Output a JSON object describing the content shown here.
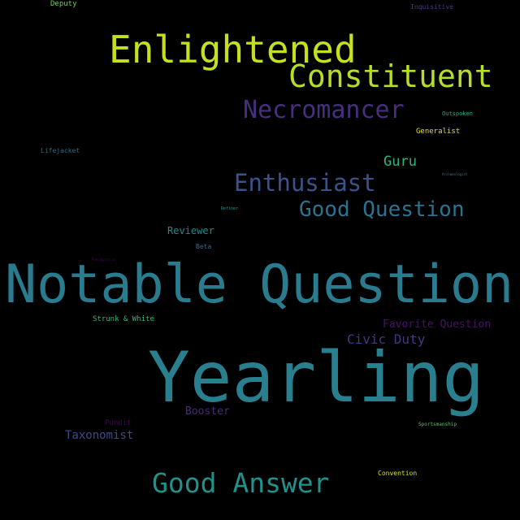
{
  "background_color": "#000000",
  "words": [
    {
      "text": "Yearling",
      "color": "#2a7f8e"
    },
    {
      "text": "Notable Question",
      "color": "#2a7b8e"
    },
    {
      "text": "Enlightened",
      "color": "#c6e021"
    },
    {
      "text": "Constituent",
      "color": "#b5de2b"
    },
    {
      "text": "Necromancer",
      "color": "#472f7d"
    },
    {
      "text": "Good Answer",
      "color": "#21918c"
    },
    {
      "text": "Enthusiast",
      "color": "#3b528b"
    },
    {
      "text": "Good Question",
      "color": "#2c728e"
    },
    {
      "text": "Guru",
      "color": "#2fb47c"
    },
    {
      "text": "Civic Duty",
      "color": "#453781"
    },
    {
      "text": "Favorite Question",
      "color": "#471365"
    },
    {
      "text": "Booster",
      "color": "#482878"
    },
    {
      "text": "Taxonomist",
      "color": "#3e4a89"
    },
    {
      "text": "Reviewer",
      "color": "#23898e"
    },
    {
      "text": "Strunk & White",
      "color": "#35b779"
    },
    {
      "text": "Convention",
      "color": "#d8e219"
    },
    {
      "text": "Generalist",
      "color": "#dde318"
    },
    {
      "text": "Pundit",
      "color": "#440154"
    },
    {
      "text": "Beta",
      "color": "#31688e"
    },
    {
      "text": "Lifejacket",
      "color": "#306a8e"
    },
    {
      "text": "Inquisitive",
      "color": "#433e85"
    },
    {
      "text": "Deputy",
      "color": "#6ccd5a"
    },
    {
      "text": "Outspoken",
      "color": "#29af7f"
    },
    {
      "text": "Sportsmanship",
      "color": "#52c569"
    },
    {
      "text": "Refiner",
      "color": "#1f988b"
    },
    {
      "text": "Archaeologist",
      "color": "#277f8e"
    },
    {
      "text": "Precognitive",
      "color": "#46075a"
    }
  ]
}
